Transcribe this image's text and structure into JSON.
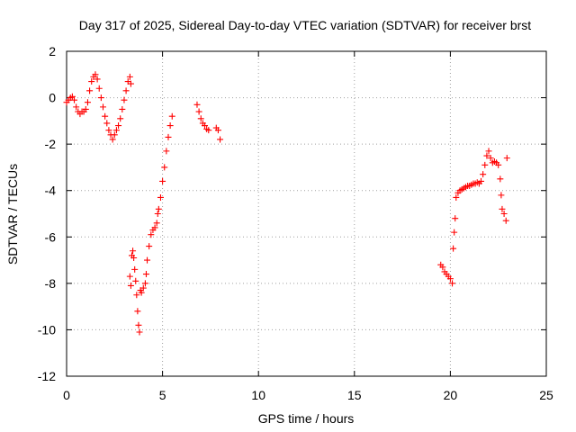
{
  "chart_data": {
    "type": "scatter",
    "title": "Day 317 of 2025, Sidereal Day-to-day VTEC variation (SDTVAR) for receiver brst",
    "xlabel": "GPS time / hours",
    "ylabel": "SDTVAR / TECUs",
    "xlim": [
      0,
      25
    ],
    "ylim": [
      -12,
      2
    ],
    "xticks": [
      "0",
      "5",
      "10",
      "15",
      "20",
      "25"
    ],
    "yticks": [
      "2",
      "0",
      "-2",
      "-4",
      "-6",
      "-8",
      "-10",
      "-12"
    ],
    "grid": true,
    "marker": "+",
    "color": "#ff0000",
    "series": [
      {
        "points": [
          [
            0.0,
            -0.2
          ],
          [
            0.1,
            -0.1
          ],
          [
            0.2,
            0.0
          ],
          [
            0.3,
            0.05
          ],
          [
            0.4,
            -0.1
          ],
          [
            0.5,
            -0.4
          ],
          [
            0.6,
            -0.6
          ],
          [
            0.7,
            -0.7
          ],
          [
            0.8,
            -0.6
          ],
          [
            0.9,
            -0.6
          ],
          [
            1.0,
            -0.5
          ],
          [
            1.1,
            -0.2
          ],
          [
            1.2,
            0.3
          ],
          [
            1.3,
            0.7
          ],
          [
            1.4,
            0.9
          ],
          [
            1.5,
            1.0
          ],
          [
            1.6,
            0.8
          ],
          [
            1.7,
            0.4
          ],
          [
            1.8,
            0.0
          ],
          [
            1.9,
            -0.4
          ],
          [
            2.0,
            -0.8
          ],
          [
            2.1,
            -1.1
          ],
          [
            2.2,
            -1.4
          ],
          [
            2.3,
            -1.6
          ],
          [
            2.4,
            -1.8
          ],
          [
            2.5,
            -1.6
          ],
          [
            2.6,
            -1.4
          ],
          [
            2.7,
            -1.2
          ],
          [
            2.8,
            -0.9
          ],
          [
            2.9,
            -0.5
          ],
          [
            3.0,
            -0.1
          ],
          [
            3.1,
            0.3
          ],
          [
            3.2,
            0.7
          ],
          [
            3.3,
            0.9
          ],
          [
            3.35,
            0.6
          ],
          [
            3.3,
            -7.7
          ],
          [
            3.35,
            -8.1
          ],
          [
            3.4,
            -6.8
          ],
          [
            3.45,
            -6.6
          ],
          [
            3.5,
            -6.9
          ],
          [
            3.55,
            -7.4
          ],
          [
            3.6,
            -7.9
          ],
          [
            3.65,
            -8.5
          ],
          [
            3.7,
            -9.2
          ],
          [
            3.75,
            -9.8
          ],
          [
            3.8,
            -10.1
          ],
          [
            3.85,
            -8.3
          ],
          [
            3.9,
            -8.4
          ],
          [
            4.0,
            -8.2
          ],
          [
            4.1,
            -8.0
          ],
          [
            4.15,
            -7.6
          ],
          [
            4.2,
            -7.0
          ],
          [
            4.3,
            -6.4
          ],
          [
            4.4,
            -5.9
          ],
          [
            4.5,
            -5.7
          ],
          [
            4.6,
            -5.6
          ],
          [
            4.7,
            -5.4
          ],
          [
            4.75,
            -5.0
          ],
          [
            4.8,
            -4.8
          ],
          [
            4.9,
            -4.3
          ],
          [
            5.0,
            -3.6
          ],
          [
            5.1,
            -3.0
          ],
          [
            5.2,
            -2.3
          ],
          [
            5.3,
            -1.7
          ],
          [
            5.4,
            -1.2
          ],
          [
            5.5,
            -0.8
          ],
          [
            6.8,
            -0.3
          ],
          [
            6.9,
            -0.6
          ],
          [
            7.0,
            -0.9
          ],
          [
            7.1,
            -1.1
          ],
          [
            7.2,
            -1.2
          ],
          [
            7.3,
            -1.35
          ],
          [
            7.4,
            -1.4
          ],
          [
            7.8,
            -1.3
          ],
          [
            7.9,
            -1.4
          ],
          [
            8.0,
            -1.8
          ],
          [
            19.5,
            -7.2
          ],
          [
            19.6,
            -7.3
          ],
          [
            19.7,
            -7.5
          ],
          [
            19.8,
            -7.6
          ],
          [
            19.9,
            -7.7
          ],
          [
            20.0,
            -7.8
          ],
          [
            20.1,
            -8.0
          ],
          [
            20.15,
            -6.5
          ],
          [
            20.2,
            -5.8
          ],
          [
            20.25,
            -5.2
          ],
          [
            20.3,
            -4.3
          ],
          [
            20.4,
            -4.1
          ],
          [
            20.5,
            -4.0
          ],
          [
            20.6,
            -3.95
          ],
          [
            20.7,
            -3.9
          ],
          [
            20.8,
            -3.85
          ],
          [
            20.9,
            -3.8
          ],
          [
            21.0,
            -3.8
          ],
          [
            21.1,
            -3.75
          ],
          [
            21.2,
            -3.7
          ],
          [
            21.3,
            -3.7
          ],
          [
            21.4,
            -3.65
          ],
          [
            21.5,
            -3.7
          ],
          [
            21.6,
            -3.6
          ],
          [
            21.7,
            -3.3
          ],
          [
            21.8,
            -2.9
          ],
          [
            21.9,
            -2.5
          ],
          [
            22.0,
            -2.3
          ],
          [
            22.1,
            -2.6
          ],
          [
            22.2,
            -2.8
          ],
          [
            22.3,
            -2.75
          ],
          [
            22.4,
            -2.8
          ],
          [
            22.5,
            -2.9
          ],
          [
            22.6,
            -3.5
          ],
          [
            22.65,
            -4.2
          ],
          [
            22.7,
            -4.8
          ],
          [
            22.8,
            -5.0
          ],
          [
            22.9,
            -5.3
          ],
          [
            22.95,
            -2.6
          ]
        ]
      }
    ]
  }
}
